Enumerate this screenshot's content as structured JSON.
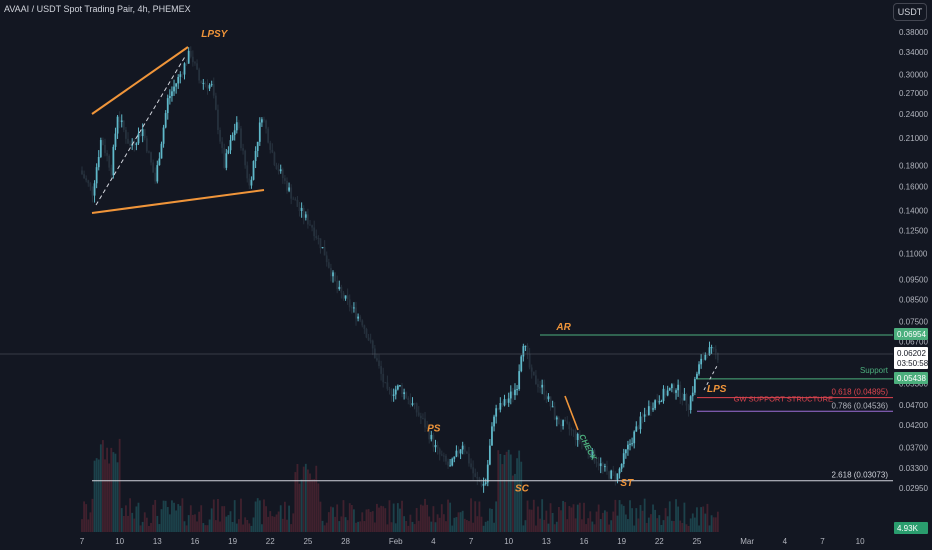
{
  "header": {
    "title": "AVAAI / USDT Spot Trading Pair, 4h, PHEMEX",
    "currency": "USDT"
  },
  "colors": {
    "background": "#131722",
    "up": "#5fb8c9",
    "down": "#26313d",
    "wedge": "#f0953a",
    "resistance": "#4caf7d",
    "fib_red": "#e0454f",
    "fib_purple": "#9c6fd6",
    "fib_white": "#d1d4dc",
    "label_orange": "#f0953a",
    "neck_green": "#4caf7d"
  },
  "chart_data": {
    "type": "candlestick",
    "scale": "log",
    "y_ticks": [
      "0.38000",
      "0.34000",
      "0.30000",
      "0.27000",
      "0.24000",
      "0.21000",
      "0.18000",
      "0.16000",
      "0.14000",
      "0.12500",
      "0.11000",
      "0.09500",
      "0.08500",
      "0.07500",
      "0.06700",
      "0.05900",
      "0.05300",
      "0.04700",
      "0.04200",
      "0.03700",
      "0.03300",
      "0.02950"
    ],
    "x_ticks": [
      "7",
      "10",
      "13",
      "16",
      "19",
      "22",
      "25",
      "28",
      "Feb",
      "4",
      "7",
      "10",
      "13",
      "16",
      "19",
      "22",
      "25",
      "Mar",
      "4",
      "7",
      "10"
    ],
    "price_labels": {
      "resistance": "0.06954",
      "current_price": "0.06202",
      "countdown": "03:50:58",
      "support": "0.05438",
      "volume": "4.93K"
    },
    "levels": {
      "resistance": 0.06954,
      "support": 0.05438,
      "fib_618": 0.04895,
      "fib_786": 0.04536,
      "fib_2618": 0.03073
    },
    "level_labels": {
      "support": "Support",
      "gw": "GW SUPPORT STRUCTURE",
      "fib_618": "0.618 (0.04895)",
      "fib_786": "0.786 (0.04536)",
      "fib_2618": "2.618 (0.03073)"
    },
    "annotations": {
      "lpsy": "LPSY",
      "ps": "PS",
      "ar": "AR",
      "sc": "SC",
      "st": "ST",
      "lps": "LPS",
      "check": "CHECK"
    },
    "wyckoff_points": [
      {
        "label": "LPSY",
        "x_day": 16.5,
        "price": 0.37
      },
      {
        "label": "PS",
        "x_day": 34.5,
        "price": 0.0405
      },
      {
        "label": "AR",
        "x_day": 44.8,
        "price": 0.0715
      },
      {
        "label": "SC",
        "x_day": 41.5,
        "price": 0.0289
      },
      {
        "label": "ST",
        "x_day": 49.9,
        "price": 0.0298
      },
      {
        "label": "LPS",
        "x_day": 56.8,
        "price": 0.0505
      },
      {
        "label": "CHECK",
        "x_day": 46.6,
        "price": 0.0395
      }
    ],
    "price_path": [
      {
        "d": 7,
        "p": 0.175
      },
      {
        "d": 8,
        "p": 0.155
      },
      {
        "d": 8.7,
        "p": 0.21
      },
      {
        "d": 9.5,
        "p": 0.175
      },
      {
        "d": 10,
        "p": 0.24
      },
      {
        "d": 11,
        "p": 0.2
      },
      {
        "d": 12,
        "p": 0.22
      },
      {
        "d": 13,
        "p": 0.165
      },
      {
        "d": 14,
        "p": 0.26
      },
      {
        "d": 15,
        "p": 0.3
      },
      {
        "d": 15.8,
        "p": 0.34
      },
      {
        "d": 16.5,
        "p": 0.29
      },
      {
        "d": 17.5,
        "p": 0.28
      },
      {
        "d": 18.5,
        "p": 0.18
      },
      {
        "d": 19.5,
        "p": 0.23
      },
      {
        "d": 20.5,
        "p": 0.16
      },
      {
        "d": 21.5,
        "p": 0.24
      },
      {
        "d": 22.5,
        "p": 0.185
      },
      {
        "d": 23.5,
        "p": 0.16
      },
      {
        "d": 24.5,
        "p": 0.14
      },
      {
        "d": 25.5,
        "p": 0.128
      },
      {
        "d": 26.5,
        "p": 0.11
      },
      {
        "d": 27.5,
        "p": 0.09
      },
      {
        "d": 28.5,
        "p": 0.082
      },
      {
        "d": 29.5,
        "p": 0.075
      },
      {
        "d": 30.5,
        "p": 0.062
      },
      {
        "d": 31.5,
        "p": 0.05
      },
      {
        "d": 32.5,
        "p": 0.052
      },
      {
        "d": 33.5,
        "p": 0.047
      },
      {
        "d": 34.5,
        "p": 0.042
      },
      {
        "d": 35.5,
        "p": 0.036
      },
      {
        "d": 36.5,
        "p": 0.033
      },
      {
        "d": 37.5,
        "p": 0.038
      },
      {
        "d": 38.5,
        "p": 0.031
      },
      {
        "d": 39.3,
        "p": 0.03
      },
      {
        "d": 40,
        "p": 0.045
      },
      {
        "d": 41,
        "p": 0.048
      },
      {
        "d": 41.8,
        "p": 0.052
      },
      {
        "d": 42.3,
        "p": 0.068
      },
      {
        "d": 43,
        "p": 0.055
      },
      {
        "d": 44,
        "p": 0.051
      },
      {
        "d": 45,
        "p": 0.043
      },
      {
        "d": 46,
        "p": 0.041
      },
      {
        "d": 47,
        "p": 0.038
      },
      {
        "d": 48,
        "p": 0.035
      },
      {
        "d": 49,
        "p": 0.032
      },
      {
        "d": 49.8,
        "p": 0.0315
      },
      {
        "d": 50.5,
        "p": 0.036
      },
      {
        "d": 51.5,
        "p": 0.042
      },
      {
        "d": 52.5,
        "p": 0.047
      },
      {
        "d": 53.5,
        "p": 0.05
      },
      {
        "d": 54.5,
        "p": 0.052
      },
      {
        "d": 55.5,
        "p": 0.047
      },
      {
        "d": 56.3,
        "p": 0.058
      },
      {
        "d": 57,
        "p": 0.064
      },
      {
        "d": 57.8,
        "p": 0.062
      }
    ]
  }
}
